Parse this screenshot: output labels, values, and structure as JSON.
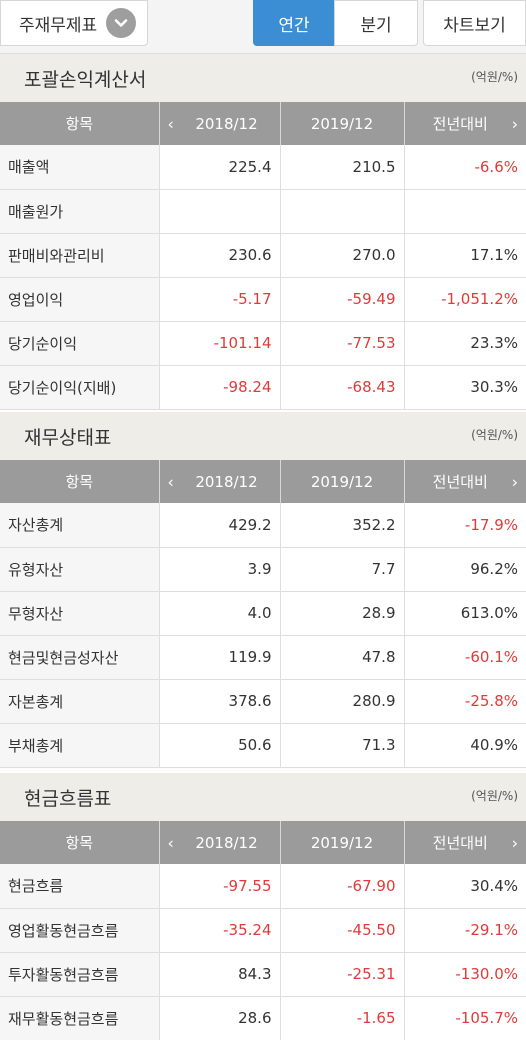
{
  "topbar": {
    "select_label": "주재무제표",
    "tabs": [
      "연간",
      "분기",
      "차트보기"
    ],
    "active_tab": "연간"
  },
  "colors": {
    "accent": "#3b8ed4",
    "negative": "#e03a3a",
    "header_bg": "#9b9b9b",
    "section_bg": "#efede8"
  },
  "sections": [
    {
      "title": "포괄손익계산서",
      "unit": "(억원/%)",
      "headers": [
        "항목",
        "2018/12",
        "2019/12",
        "전년대비"
      ],
      "rows": [
        [
          "매출액",
          "225.4",
          "210.5",
          "-6.6%"
        ],
        [
          "매출원가",
          "",
          "",
          ""
        ],
        [
          "판매비와관리비",
          "230.6",
          "270.0",
          "17.1%"
        ],
        [
          "영업이익",
          "-5.17",
          "-59.49",
          "-1,051.2%"
        ],
        [
          "당기순이익",
          "-101.14",
          "-77.53",
          "23.3%"
        ],
        [
          "당기순이익(지배)",
          "-98.24",
          "-68.43",
          "30.3%"
        ]
      ]
    },
    {
      "title": "재무상태표",
      "unit": "(억원/%)",
      "headers": [
        "항목",
        "2018/12",
        "2019/12",
        "전년대비"
      ],
      "rows": [
        [
          "자산총계",
          "429.2",
          "352.2",
          "-17.9%"
        ],
        [
          "유형자산",
          "3.9",
          "7.7",
          "96.2%"
        ],
        [
          "무형자산",
          "4.0",
          "28.9",
          "613.0%"
        ],
        [
          "현금및현금성자산",
          "119.9",
          "47.8",
          "-60.1%"
        ],
        [
          "자본총계",
          "378.6",
          "280.9",
          "-25.8%"
        ],
        [
          "부채총계",
          "50.6",
          "71.3",
          "40.9%"
        ]
      ]
    },
    {
      "title": "현금흐름표",
      "unit": "(억원/%)",
      "headers": [
        "항목",
        "2018/12",
        "2019/12",
        "전년대비"
      ],
      "rows": [
        [
          "현금흐름",
          "-97.55",
          "-67.90",
          "30.4%"
        ],
        [
          "영업활동현금흐름",
          "-35.24",
          "-45.50",
          "-29.1%"
        ],
        [
          "투자활동현금흐름",
          "84.3",
          "-25.31",
          "-130.0%"
        ],
        [
          "재무활동현금흐름",
          "28.6",
          "-1.65",
          "-105.7%"
        ]
      ]
    }
  ]
}
